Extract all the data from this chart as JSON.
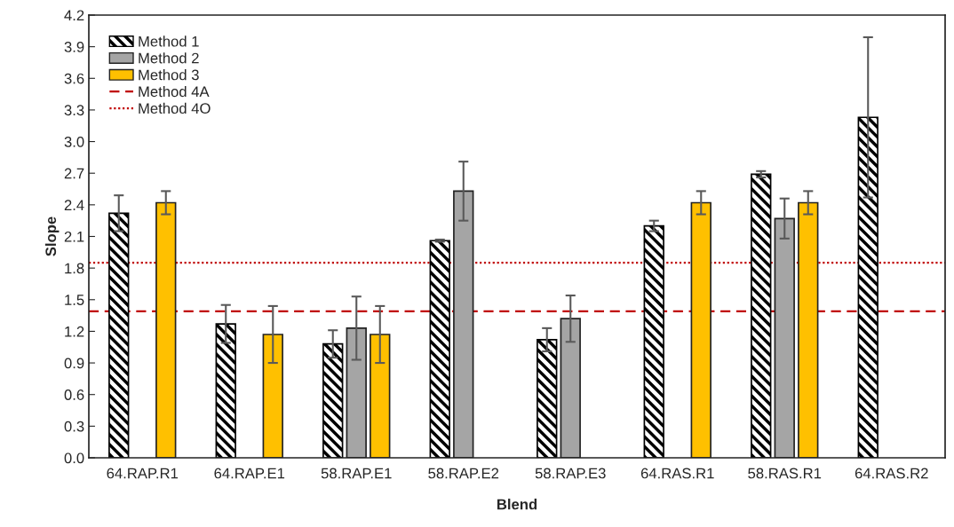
{
  "chart_data": {
    "type": "bar",
    "xlabel": "Blend",
    "ylabel": "Slope",
    "categories": [
      "64.RAP.R1",
      "64.RAP.E1",
      "58.RAP.E1",
      "58.RAP.E2",
      "58.RAP.E3",
      "64.RAS.R1",
      "58.RAS.R1",
      "64.RAS.R2"
    ],
    "series": [
      {
        "name": "Method 1",
        "color": "#000000",
        "values": [
          2.32,
          1.27,
          1.08,
          2.06,
          1.12,
          2.2,
          2.69,
          3.23
        ],
        "errors": [
          0.17,
          0.18,
          0.13,
          0.01,
          0.11,
          0.05,
          0.03,
          0.76
        ]
      },
      {
        "name": "Method 2",
        "color": "#a5a5a5",
        "values": [
          null,
          null,
          1.23,
          2.53,
          1.32,
          null,
          2.27,
          null
        ],
        "errors": [
          null,
          null,
          0.3,
          0.28,
          0.22,
          null,
          0.19,
          null
        ]
      },
      {
        "name": "Method 3",
        "color": "#ffc000",
        "values": [
          2.42,
          1.17,
          1.17,
          null,
          null,
          2.42,
          2.42,
          null
        ],
        "errors": [
          0.11,
          0.27,
          0.27,
          null,
          null,
          0.11,
          0.11,
          null
        ]
      }
    ],
    "ref_lines": [
      {
        "axis": "y",
        "value": 1.39,
        "label": "Method 4A",
        "color": "#c00000",
        "line_style": "dashed"
      },
      {
        "axis": "y",
        "value": 1.85,
        "label": "Method 4O",
        "color": "#c00000",
        "line_style": "dotted"
      }
    ],
    "ylim": [
      0,
      4.2
    ],
    "yticks": [
      {
        "value": 0,
        "label": "0.0"
      },
      0.3,
      0.6,
      0.9,
      1.2,
      1.5,
      1.8,
      2.1,
      2.4,
      2.7,
      {
        "value": 3,
        "label": "3.0"
      },
      3.3,
      3.6,
      3.9,
      4.2
    ],
    "grid": false,
    "legend": "top left"
  }
}
